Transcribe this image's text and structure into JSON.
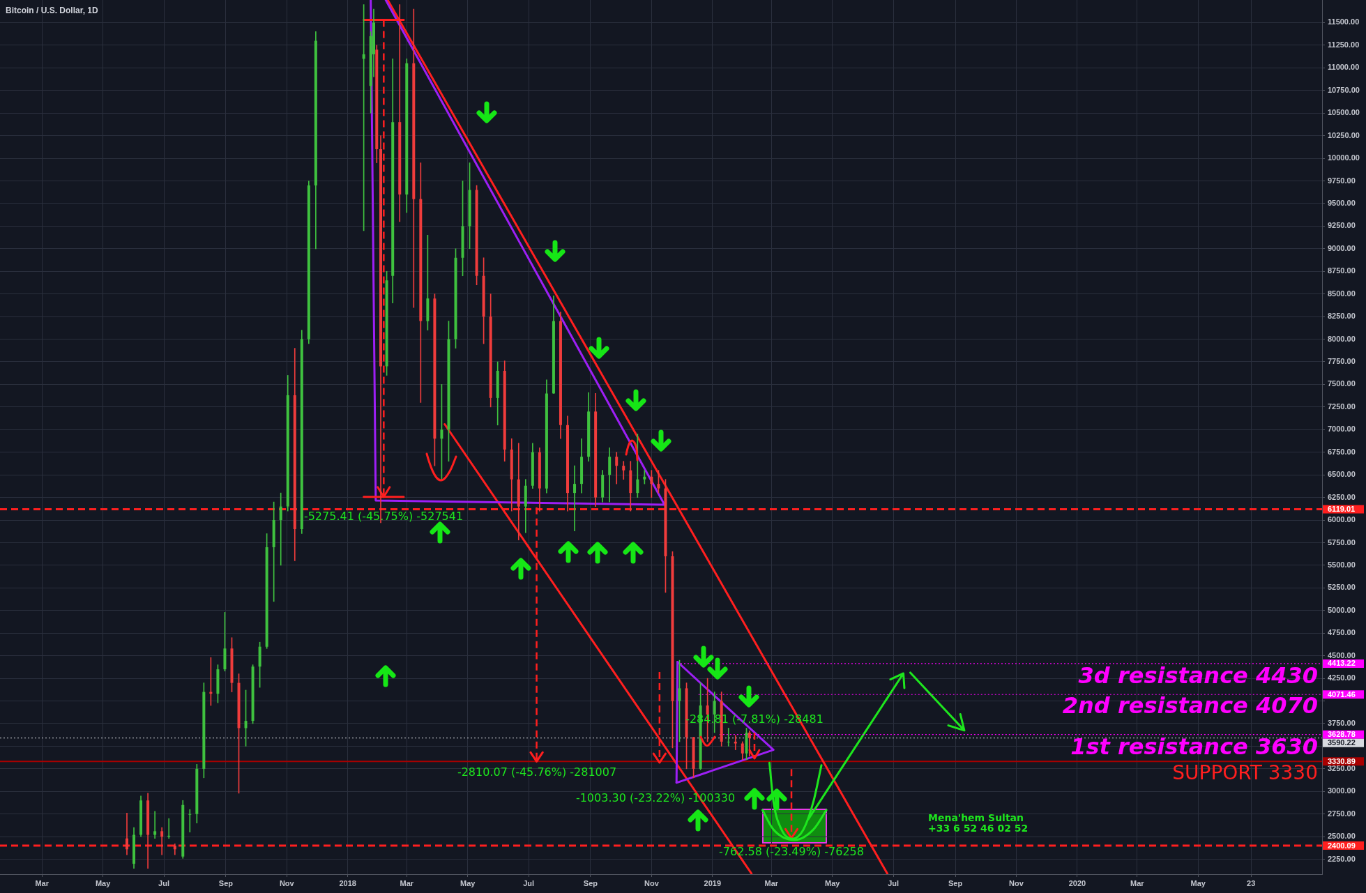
{
  "chart_data": {
    "type": "candlestick",
    "title": "Bitcoin / U.S. Dollar, 1D",
    "xlim": [
      "2017-01-18",
      "2020-09-02"
    ],
    "xticks": [
      {
        "value": "2017-03-01",
        "label": "Mar"
      },
      {
        "value": "2017-05-01",
        "label": "May"
      },
      {
        "value": "2017-07-01",
        "label": "Jul"
      },
      {
        "value": "2017-09-01",
        "label": "Sep"
      },
      {
        "value": "2017-11-01",
        "label": "Nov"
      },
      {
        "value": "2018-01-01",
        "label": "2018"
      },
      {
        "value": "2018-03-01",
        "label": "Mar"
      },
      {
        "value": "2018-05-01",
        "label": "May"
      },
      {
        "value": "2018-07-01",
        "label": "Jul"
      },
      {
        "value": "2018-09-01",
        "label": "Sep"
      },
      {
        "value": "2018-11-01",
        "label": "Nov"
      },
      {
        "value": "2019-01-01",
        "label": "2019"
      },
      {
        "value": "2019-03-01",
        "label": "Mar"
      },
      {
        "value": "2019-05-01",
        "label": "May"
      },
      {
        "value": "2019-07-01",
        "label": "Jul"
      },
      {
        "value": "2019-09-01",
        "label": "Sep"
      },
      {
        "value": "2019-11-01",
        "label": "Nov"
      },
      {
        "value": "2020-01-01",
        "label": "2020"
      },
      {
        "value": "2020-03-01",
        "label": "Mar"
      },
      {
        "value": "2020-05-01",
        "label": "May"
      },
      {
        "value": "2020-06-23",
        "label": "23"
      }
    ],
    "ylim": [
      2085,
      11750
    ],
    "yticks": [
      {
        "value": 2250,
        "label": "2250.00"
      },
      {
        "value": 2500,
        "label": "2500.00"
      },
      {
        "value": 2750,
        "label": "2750.00"
      },
      {
        "value": 3000,
        "label": "3000.00"
      },
      {
        "value": 3250,
        "label": "3250.00"
      },
      {
        "value": 3500,
        "label": null
      },
      {
        "value": 3750,
        "label": "3750.00"
      },
      {
        "value": 4000,
        "label": null
      },
      {
        "value": 4250,
        "label": "4250.00"
      },
      {
        "value": 4500,
        "label": "4500.00"
      },
      {
        "value": 4750,
        "label": "4750.00"
      },
      {
        "value": 5000,
        "label": "5000.00"
      },
      {
        "value": 5250,
        "label": "5250.00"
      },
      {
        "value": 5500,
        "label": "5500.00"
      },
      {
        "value": 5750,
        "label": "5750.00"
      },
      {
        "value": 6000,
        "label": "6000.00"
      },
      {
        "value": 6250,
        "label": "6250.00"
      },
      {
        "value": 6500,
        "label": "6500.00"
      },
      {
        "value": 6750,
        "label": "6750.00"
      },
      {
        "value": 7000,
        "label": "7000.00"
      },
      {
        "value": 7250,
        "label": "7250.00"
      },
      {
        "value": 7500,
        "label": "7500.00"
      },
      {
        "value": 7750,
        "label": "7750.00"
      },
      {
        "value": 8000,
        "label": "8000.00"
      },
      {
        "value": 8250,
        "label": "8250.00"
      },
      {
        "value": 8500,
        "label": "8500.00"
      },
      {
        "value": 8750,
        "label": "8750.00"
      },
      {
        "value": 9000,
        "label": "9000.00"
      },
      {
        "value": 9250,
        "label": "9250.00"
      },
      {
        "value": 9500,
        "label": "9500.00"
      },
      {
        "value": 9750,
        "label": "9750.00"
      },
      {
        "value": 10000,
        "label": "10000.00"
      },
      {
        "value": 10250,
        "label": "10250.00"
      },
      {
        "value": 10500,
        "label": "10500.00"
      },
      {
        "value": 10750,
        "label": "10750.00"
      },
      {
        "value": 11000,
        "label": "11000.00"
      },
      {
        "value": 11250,
        "label": "11250.00"
      },
      {
        "value": 11500,
        "label": "11500.00"
      }
    ],
    "grid": true,
    "marker": "none",
    "ref_lines": [
      {
        "axis": "y",
        "value": 6119.01,
        "label": "6119.01",
        "color": "#ff1f1f",
        "line_style": "dashed"
      },
      {
        "axis": "y",
        "value": 3590.22,
        "label": "3590.22",
        "color": "#d8dae0",
        "line_style": "dotted"
      },
      {
        "axis": "y",
        "value": 3330.89,
        "label": "3330.89",
        "color": "#a80000",
        "line_style": "solid"
      },
      {
        "axis": "y",
        "value": 2400.09,
        "label": "2400.09",
        "color": "#ff1f1f",
        "line_style": "dashed"
      }
    ],
    "annotations": [
      "-5275.41 (-45.75%) -527541",
      "-2810.07 (-45.76%) -281007",
      "-1003.30 (-23.22%) -100330",
      {
        "text": "-284.81 (-7.81%) -28481",
        "x": "2019-02-12",
        "y": 3362
      },
      "-762.58 (-23.49%) -76258",
      "3d resistance 4430",
      "2nd resistance 4070",
      "1st resistance 3630",
      "SUPPORT 3330",
      "Mena'hem Sultan",
      "+33 6 52 46 02 52"
    ],
    "series": [
      {
        "x": [
          "2017-05-25",
          "2017-06-01",
          "2017-06-08",
          "2017-06-15",
          "2017-06-22",
          "2017-06-29",
          "2017-07-06",
          "2017-07-12",
          "2017-07-20",
          "2017-07-27",
          "2017-08-03",
          "2017-08-10",
          "2017-08-17",
          "2017-08-24",
          "2017-08-31",
          "2017-09-07",
          "2017-09-14",
          "2017-09-21",
          "2017-09-28",
          "2017-10-05",
          "2017-10-12",
          "2017-10-19",
          "2017-10-26",
          "2017-11-02",
          "2017-11-09",
          "2017-11-16",
          "2017-11-23",
          "2017-11-30",
          "2018-01-17",
          "2018-01-24",
          "2018-01-27",
          "2018-01-30",
          "2018-02-03",
          "2018-02-09",
          "2018-02-15",
          "2018-02-22",
          "2018-03-01",
          "2018-03-08",
          "2018-03-15",
          "2018-03-22",
          "2018-03-29",
          "2018-04-05",
          "2018-04-12",
          "2018-04-19",
          "2018-04-26",
          "2018-05-03",
          "2018-05-10",
          "2018-05-17",
          "2018-05-24",
          "2018-05-31",
          "2018-06-07",
          "2018-06-14",
          "2018-06-21",
          "2018-06-28",
          "2018-07-05",
          "2018-07-12",
          "2018-07-19",
          "2018-07-26",
          "2018-08-02",
          "2018-08-09",
          "2018-08-16",
          "2018-08-23",
          "2018-08-30",
          "2018-09-06",
          "2018-09-13",
          "2018-09-20",
          "2018-09-27",
          "2018-10-04",
          "2018-10-11",
          "2018-10-18",
          "2018-10-25",
          "2018-11-01",
          "2018-11-08",
          "2018-11-15",
          "2018-11-22",
          "2018-11-29",
          "2018-12-06",
          "2018-12-13",
          "2018-12-20",
          "2018-12-27",
          "2019-01-03",
          "2019-01-10",
          "2019-01-17",
          "2019-01-24",
          "2019-01-31",
          "2019-02-04",
          "2019-02-07"
        ],
        "ohlc": [
          [
            2480,
            2760,
            2300,
            2360
          ],
          [
            2200,
            2600,
            2150,
            2520
          ],
          [
            2520,
            2950,
            2500,
            2900
          ],
          [
            2900,
            2980,
            2150,
            2520
          ],
          [
            2520,
            2780,
            2480,
            2560
          ],
          [
            2560,
            2600,
            2300,
            2500
          ],
          [
            2500,
            2700,
            2480,
            2510
          ],
          [
            2400,
            2420,
            2300,
            2360
          ],
          [
            2280,
            2900,
            2260,
            2850
          ],
          [
            2750,
            2800,
            2550,
            2750
          ],
          [
            2750,
            3300,
            2650,
            3250
          ],
          [
            3250,
            4200,
            3150,
            4100
          ],
          [
            4100,
            4480,
            3950,
            4080
          ],
          [
            4080,
            4400,
            3980,
            4350
          ],
          [
            4350,
            4980,
            4330,
            4580
          ],
          [
            4580,
            4700,
            4100,
            4200
          ],
          [
            4200,
            4300,
            2980,
            3700
          ],
          [
            3700,
            4120,
            3500,
            3780
          ],
          [
            3780,
            4400,
            3750,
            4380
          ],
          [
            4380,
            4650,
            4150,
            4600
          ],
          [
            4600,
            5850,
            4580,
            5700
          ],
          [
            5700,
            6200,
            5100,
            6000
          ],
          [
            6000,
            6300,
            5500,
            6150
          ],
          [
            6150,
            7600,
            6100,
            7380
          ],
          [
            7380,
            7900,
            5550,
            5900
          ],
          [
            5900,
            8100,
            5850,
            8000
          ],
          [
            8000,
            9750,
            7950,
            9700
          ],
          [
            9700,
            11400,
            9000,
            11300
          ],
          [
            11100,
            11700,
            9200,
            11150
          ],
          [
            10800,
            11400,
            10500,
            11350
          ],
          [
            11150,
            11650,
            10900,
            11500
          ],
          [
            11200,
            11250,
            9950,
            10100
          ],
          [
            10100,
            10250,
            5970,
            7700
          ],
          [
            7700,
            8750,
            7600,
            8650
          ],
          [
            8700,
            11100,
            8400,
            10400
          ],
          [
            10400,
            11700,
            9300,
            9600
          ],
          [
            9600,
            11100,
            9400,
            11050
          ],
          [
            11050,
            11650,
            8350,
            9550
          ],
          [
            9550,
            9950,
            7300,
            8200
          ],
          [
            8200,
            9150,
            8100,
            8450
          ],
          [
            8450,
            8500,
            6600,
            6900
          ],
          [
            6900,
            7500,
            6450,
            7000
          ],
          [
            7000,
            8200,
            6650,
            8000
          ],
          [
            8000,
            9000,
            7900,
            8900
          ],
          [
            8900,
            9750,
            8700,
            9250
          ],
          [
            9250,
            9950,
            9000,
            9650
          ],
          [
            9650,
            9700,
            8600,
            8700
          ],
          [
            8700,
            8900,
            7950,
            8250
          ],
          [
            8250,
            8500,
            7250,
            7350
          ],
          [
            7350,
            7750,
            7050,
            7650
          ],
          [
            7650,
            7760,
            6650,
            6780
          ],
          [
            6780,
            6900,
            6100,
            6450
          ],
          [
            6450,
            6850,
            5780,
            6150
          ],
          [
            6150,
            6450,
            5860,
            6380
          ],
          [
            6380,
            6850,
            6350,
            6750
          ],
          [
            6750,
            6800,
            6100,
            6350
          ],
          [
            6350,
            7550,
            6300,
            7400
          ],
          [
            7400,
            8480,
            7400,
            8200
          ],
          [
            8200,
            8300,
            6900,
            7050
          ],
          [
            7050,
            7150,
            6100,
            6300
          ],
          [
            6300,
            6600,
            5880,
            6400
          ],
          [
            6400,
            6900,
            6300,
            6700
          ],
          [
            6700,
            7410,
            6650,
            7200
          ],
          [
            7200,
            7400,
            6150,
            6250
          ],
          [
            6250,
            6550,
            6200,
            6500
          ],
          [
            6500,
            6800,
            6200,
            6700
          ],
          [
            6700,
            6750,
            6400,
            6600
          ],
          [
            6600,
            6650,
            6450,
            6550
          ],
          [
            6550,
            6650,
            6100,
            6300
          ],
          [
            6300,
            6950,
            6250,
            6450
          ],
          [
            6450,
            6550,
            6400,
            6480
          ],
          [
            6480,
            6550,
            6250,
            6400
          ],
          [
            6400,
            6550,
            6300,
            6350
          ],
          [
            6350,
            6450,
            5200,
            5600
          ],
          [
            5600,
            5650,
            3480,
            4000
          ],
          [
            4000,
            4450,
            3550,
            4140
          ],
          [
            4140,
            4200,
            3250,
            3600
          ],
          [
            3600,
            3600,
            3150,
            3250
          ],
          [
            3250,
            4200,
            3240,
            3950
          ],
          [
            3950,
            4250,
            3550,
            3850
          ],
          [
            3850,
            4100,
            3650,
            4000
          ],
          [
            4000,
            4100,
            3500,
            3550
          ],
          [
            3550,
            3700,
            3500,
            3550
          ],
          [
            3550,
            3620,
            3460,
            3530
          ],
          [
            3530,
            3550,
            3350,
            3420
          ],
          [
            3420,
            3700,
            3350,
            3650
          ],
          [
            3650,
            3670,
            3390,
            3590
          ]
        ]
      },
      {
        "type": "line",
        "x": [
          "2018-02-10",
          "2019-06-25"
        ],
        "values": [
          11750,
          2090
        ],
        "color": "#ff1f1f",
        "line_style": "solid"
      },
      {
        "type": "line",
        "x": [
          "2018-04-08",
          "2019-02-09"
        ],
        "values": [
          7060,
          2092
        ],
        "color": "#ff1f1f",
        "line_style": "solid"
      },
      {
        "type": "line",
        "x": [
          "2018-01-24",
          "2018-01-29",
          "2018-11-14",
          "2018-02-08"
        ],
        "values": [
          11750,
          6217,
          6170,
          11750
        ],
        "color": "#9d1ff5",
        "line_style": "solid"
      },
      {
        "type": "line",
        "x": [
          "2018-11-26",
          "2019-03-03",
          "2018-11-27"
        ],
        "values": [
          3096,
          3460,
          4432
        ],
        "color": "#9d1ff5",
        "line_style": "solid"
      },
      {
        "type": "line",
        "x": [
          "2018-11-26",
          "2018-11-27"
        ],
        "values": [
          3096,
          4432
        ],
        "color": "#9d1ff5",
        "line_style": "solid"
      },
      {
        "type": "line",
        "x": [
          "2018-01-17",
          "2018-02-26"
        ],
        "values": [
          11531,
          11531
        ],
        "color": "#ff1f1f",
        "line_style": "solid"
      },
      {
        "type": "line",
        "x": [
          "2018-01-17",
          "2018-02-26"
        ],
        "values": [
          6256,
          6256
        ],
        "color": "#ff1f1f",
        "line_style": "solid"
      },
      {
        "type": "line",
        "x": [
          "2018-02-06",
          "2018-02-06"
        ],
        "values": [
          11531,
          6256
        ],
        "color": "#ff1f1f",
        "line_style": "dashed"
      },
      {
        "type": "line",
        "x": [
          "2018-01-31",
          "2018-02-06",
          "2018-02-12"
        ],
        "values": [
          6364,
          6256,
          6364
        ],
        "color": "#ff1f1f",
        "line_style": "solid"
      },
      {
        "type": "line",
        "x": [
          "2018-07-09",
          "2018-07-09"
        ],
        "values": [
          6141,
          3331
        ],
        "color": "#ff1f1f",
        "line_style": "dashed"
      },
      {
        "type": "line",
        "x": [
          "2018-07-03",
          "2018-07-09",
          "2018-07-15"
        ],
        "values": [
          3431,
          3331,
          3431
        ],
        "color": "#ff1f1f",
        "line_style": "solid"
      },
      {
        "type": "line",
        "x": [
          "2018-11-09",
          "2018-11-09"
        ],
        "values": [
          4321,
          3318
        ],
        "color": "#ff1f1f",
        "line_style": "dashed"
      },
      {
        "type": "line",
        "x": [
          "2018-11-03",
          "2018-11-09",
          "2018-11-15"
        ],
        "values": [
          3418,
          3318,
          3418
        ],
        "color": "#ff1f1f",
        "line_style": "solid"
      },
      {
        "type": "line",
        "x": [
          "2019-03-21",
          "2019-03-21"
        ],
        "values": [
          3246,
          2484
        ],
        "color": "#ff1f1f",
        "line_style": "dashed"
      },
      {
        "type": "line",
        "x": [
          "2019-03-15",
          "2019-03-21",
          "2019-03-27"
        ],
        "values": [
          2584,
          2484,
          2584
        ],
        "color": "#ff1f1f",
        "line_style": "solid"
      },
      {
        "type": "line",
        "x": [
          "2019-04-07",
          "2019-07-11",
          "2019-06-28",
          "2019-07-11",
          "2019-07-12"
        ],
        "values": [
          2695,
          4305,
          4239,
          4305,
          4143
        ],
        "color": "#1ee61e",
        "line_style": "solid"
      },
      {
        "type": "line",
        "x": [
          "2019-07-18",
          "2019-09-10",
          "2019-08-25",
          "2019-09-10",
          "2019-09-06"
        ],
        "values": [
          4313,
          3674,
          3730,
          3674,
          3854
        ],
        "color": "#1ee61e",
        "line_style": "solid"
      },
      {
        "type": "line",
        "x": [
          "2019-02-27",
          "2019-03-03",
          "2019-03-11",
          "2019-03-22",
          "2019-04-02",
          "2019-04-12",
          "2019-04-20"
        ],
        "values": [
          3317,
          2887,
          2579,
          2477,
          2579,
          2887,
          3289
        ],
        "color": "#1ee61e",
        "line_style": "solid"
      },
      {
        "type": "line",
        "x": [
          "2019-02-20",
          "2019-03-03",
          "2019-03-24",
          "2019-04-12",
          "2019-04-25"
        ],
        "values": [
          2794,
          2579,
          2463,
          2579,
          2794
        ],
        "color": "#1ee61e",
        "line_style": "solid"
      },
      {
        "type": "line",
        "x": [
          "2018-11-30",
          "2020-09-02"
        ],
        "values": [
          4413.22,
          4413.22
        ],
        "color": "#ff00ff",
        "line_style": "dotted",
        "value_labels": [
          null,
          "4413.22"
        ]
      },
      {
        "type": "line",
        "x": [
          "2018-12-18",
          "2020-09-02"
        ],
        "values": [
          4071.46,
          4071.46
        ],
        "color": "#ff00ff",
        "line_style": "dotted",
        "value_labels": [
          null,
          "4071.46"
        ]
      },
      {
        "type": "line",
        "x": [
          "2019-01-08",
          "2020-09-02"
        ],
        "values": [
          3628.78,
          3628.78
        ],
        "color": "#ff00ff",
        "line_style": "dotted",
        "value_labels": [
          null,
          "3628.78"
        ]
      }
    ]
  }
}
